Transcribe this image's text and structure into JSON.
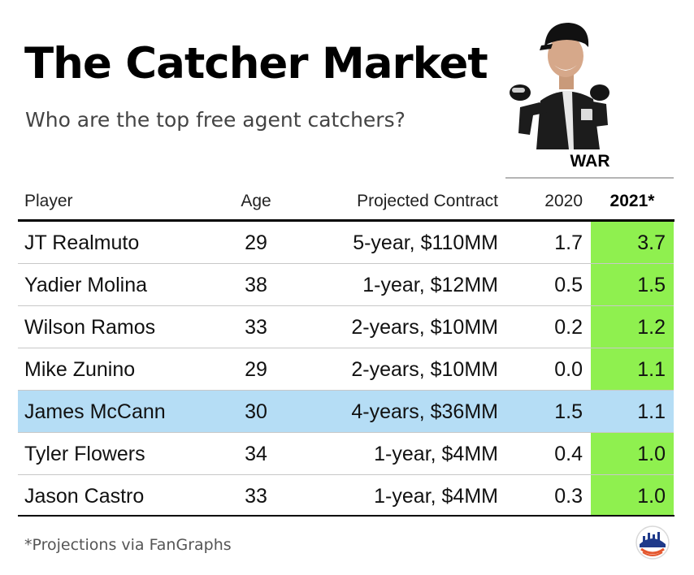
{
  "title": "The Catcher Market",
  "subtitle": "Who are the top free agent catchers?",
  "war_group_label": "WAR",
  "columns": {
    "player": "Player",
    "age": "Age",
    "contract": "Projected Contract",
    "war_2020": "2020",
    "war_2021": "2021*"
  },
  "rows": [
    {
      "player": "JT Realmuto",
      "age": "29",
      "contract": "5-year, $110MM",
      "war_2020": "1.7",
      "war_2021": "3.7"
    },
    {
      "player": "Yadier Molina",
      "age": "38",
      "contract": "1-year, $12MM",
      "war_2020": "0.5",
      "war_2021": "1.5"
    },
    {
      "player": "Wilson Ramos",
      "age": "33",
      "contract": "2-years, $10MM",
      "war_2020": "0.2",
      "war_2021": "1.2"
    },
    {
      "player": "Mike Zunino",
      "age": "29",
      "contract": "2-years, $10MM",
      "war_2020": "0.0",
      "war_2021": "1.1"
    },
    {
      "player": "James McCann",
      "age": "30",
      "contract": "4-years, $36MM",
      "war_2020": "1.5",
      "war_2021": "1.1",
      "highlighted": true
    },
    {
      "player": "Tyler Flowers",
      "age": "34",
      "contract": "1-year, $4MM",
      "war_2020": "0.4",
      "war_2021": "1.0"
    },
    {
      "player": "Jason Castro",
      "age": "33",
      "contract": "1-year, $4MM",
      "war_2020": "0.3",
      "war_2021": "1.0"
    }
  ],
  "footnote": "*Projections via FanGraphs",
  "colors": {
    "war_2021_fill": "#8ff04f",
    "highlight_row": "#b5ddf5",
    "text": "#111111"
  },
  "icons": {
    "photo": "baseball-player-photo",
    "logo": "team-logo-icon"
  }
}
